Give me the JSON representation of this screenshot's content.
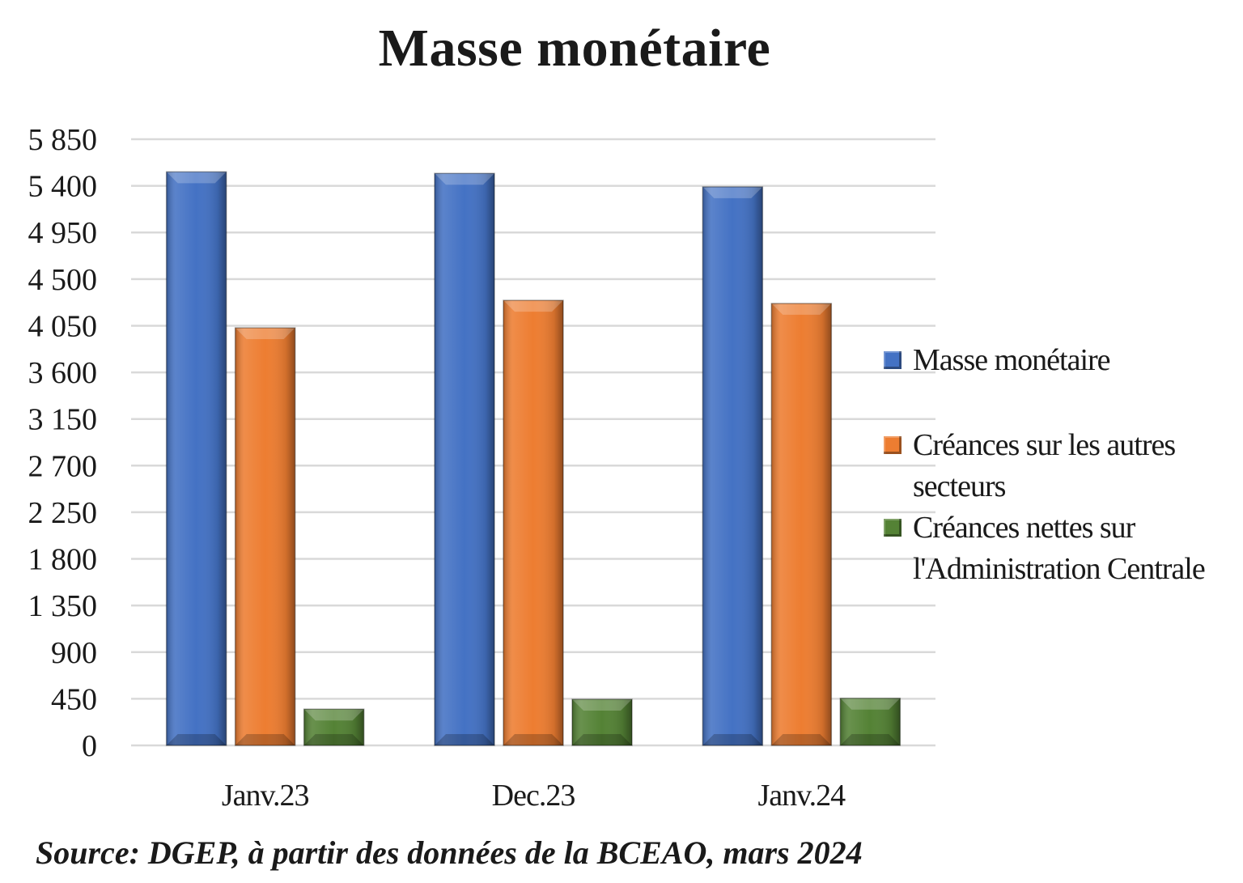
{
  "chart_data": {
    "type": "bar",
    "title": "Masse monétaire",
    "xlabel": "",
    "ylabel": "",
    "ylim": [
      0,
      5850
    ],
    "yticks": [
      0,
      450,
      900,
      1350,
      1800,
      2250,
      2700,
      3150,
      3600,
      4050,
      4500,
      4950,
      5400,
      5850
    ],
    "ytick_labels": [
      "0",
      "450",
      "900",
      "1 350",
      "1 800",
      "2 250",
      "2 700",
      "3 150",
      "3 600",
      "4 050",
      "4 500",
      "4 950",
      "5 400",
      "5 850"
    ],
    "categories": [
      "Janv.23",
      "Dec.23",
      "Janv.24"
    ],
    "series": [
      {
        "name": "Masse monétaire",
        "color": "#4472C4",
        "values": [
          5535,
          5520,
          5390
        ]
      },
      {
        "name": "Créances sur les autres secteurs",
        "color": "#ED7D31",
        "values": [
          4030,
          4295,
          4265
        ]
      },
      {
        "name": "Créances nettes sur l'Administration Centrale",
        "color": "#548235",
        "values": [
          350,
          445,
          455
        ]
      }
    ],
    "grid": true,
    "legend_position": "right"
  },
  "legend": {
    "items": [
      {
        "lines": [
          "Masse monétaire"
        ]
      },
      {
        "lines": [
          "Créances sur les autres",
          "secteurs"
        ]
      },
      {
        "lines": [
          "Créances nettes sur",
          "l'Administration Centrale"
        ]
      }
    ]
  },
  "source": "Source: DGEP, à partir des données de la BCEAO, mars 2024"
}
